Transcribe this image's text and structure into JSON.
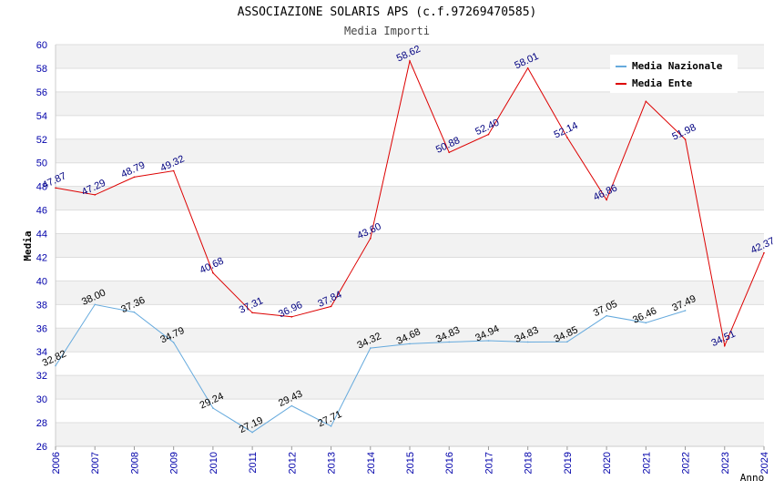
{
  "header": {
    "title": "ASSOCIAZIONE SOLARIS APS (c.f.97269470585)",
    "subtitle": "Media Importi"
  },
  "chart_data": {
    "type": "line",
    "ylabel": "Media",
    "xlabel": "Anno",
    "ylim": [
      26,
      60
    ],
    "yticks": [
      26,
      28,
      30,
      32,
      34,
      36,
      38,
      40,
      42,
      44,
      46,
      48,
      50,
      52,
      54,
      56,
      58,
      60
    ],
    "categories": [
      "2006",
      "2007",
      "2008",
      "2009",
      "2010",
      "2011",
      "2012",
      "2013",
      "2014",
      "2015",
      "2016",
      "2017",
      "2018",
      "2019",
      "2020",
      "2021",
      "2022",
      "2023",
      "2024"
    ],
    "grid": "alternating horizontal bands",
    "legend_position": "top-right",
    "series": [
      {
        "name": "Media Nazionale",
        "color": "#66aadd",
        "label_color": "#000000",
        "values": [
          32.82,
          38.0,
          37.36,
          34.79,
          29.24,
          27.19,
          29.43,
          27.71,
          34.32,
          34.68,
          34.83,
          34.94,
          34.83,
          34.85,
          37.05,
          36.46,
          37.49,
          null,
          null
        ],
        "labels": [
          "32.82",
          "38.00",
          "37.36",
          "34.79",
          "29.24",
          "27.19",
          "29.43",
          "27.71",
          "34.32",
          "34.68",
          "34.83",
          "34.94",
          "34.83",
          "34.85",
          "37.05",
          "36.46",
          "37.49",
          null,
          null
        ]
      },
      {
        "name": "Media Ente",
        "color": "#dd0000",
        "label_color": "#000080",
        "values": [
          47.87,
          47.29,
          48.79,
          49.32,
          40.68,
          37.31,
          36.96,
          37.84,
          43.6,
          58.62,
          50.88,
          52.4,
          58.01,
          52.14,
          46.86,
          55.2,
          51.98,
          34.51,
          42.37
        ],
        "labels": [
          "47.87",
          "47.29",
          "48.79",
          "49.32",
          "40.68",
          "37.31",
          "36.96",
          "37.84",
          "43.60",
          "58.62",
          "50.88",
          "52.40",
          "58.01",
          "52.14",
          "46.86",
          null,
          "51.98",
          "34.51",
          "42.37"
        ]
      }
    ]
  }
}
